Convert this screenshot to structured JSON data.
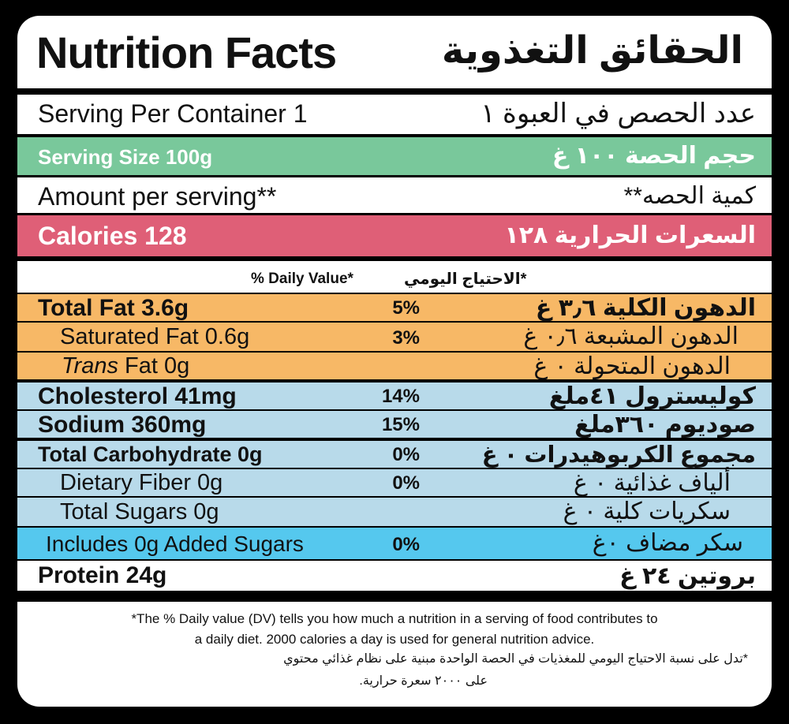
{
  "colors": {
    "serving_size_bg": "#79c89b",
    "calories_bg": "#df5f77",
    "fat_bg": "#f7b866",
    "nutrient_bg": "#b8daea",
    "added_sugars_bg": "#55c8ee"
  },
  "title": {
    "en": "Nutrition Facts",
    "ar": "الحقائق التغذوية"
  },
  "servings": {
    "en": "Serving Per Container 1",
    "ar": "عدد الحصص في العبوة ١"
  },
  "serving_size": {
    "en": "Serving Size 100g",
    "ar": "حجم الحصة ١٠٠ غ"
  },
  "amount": {
    "en": "Amount per serving**",
    "ar": "كمية الحصه**"
  },
  "calories": {
    "en": "Calories 128",
    "ar": "السعرات الحرارية ١٢٨"
  },
  "daily_value_header": {
    "en": "% Daily Value*",
    "ar": "*الاحتياج اليومي"
  },
  "nutrients": [
    {
      "en": "Total Fat 3.6g",
      "pct": "5%",
      "ar": "الدهون الكلية ٣٫٦ غ"
    },
    {
      "en": "Saturated Fat 0.6g",
      "pct": "3%",
      "ar": "الدهون المشبعة ٠٫٦ غ"
    },
    {
      "en_italic": "Trans",
      "en": " Fat 0g",
      "pct": "",
      "ar": "الدهون المتحولة ٠ غ"
    },
    {
      "en": "Cholesterol 41mg",
      "pct": "14%",
      "ar": "كوليسترول ٤١ملغ"
    },
    {
      "en": "Sodium 360mg",
      "pct": "15%",
      "ar": "صوديوم ٣٦٠ملغ"
    },
    {
      "en": "Total Carbohydrate 0g",
      "pct": "0%",
      "ar": "مجموع الكربوهيدرات ٠ غ"
    },
    {
      "en": "Dietary Fiber 0g",
      "pct": "0%",
      "ar": "ألياف غذائية ٠ غ"
    },
    {
      "en": "Total Sugars 0g",
      "pct": "",
      "ar": "سكريات كلية ٠ غ"
    },
    {
      "en": "Includes 0g Added Sugars",
      "pct": "0%",
      "ar": "سكر مضاف ٠غ"
    },
    {
      "en": "Protein 24g",
      "pct": "",
      "ar": "بروتين ٢٤ غ"
    }
  ],
  "footnote": {
    "en_line1": "*The % Daily value (DV) tells you how much a nutrition in a serving of food contributes to",
    "en_line2": "a daily diet. 2000 calories a day is used for general nutrition advice.",
    "ar_line1": "*تدل على نسبة الاحتياج اليومي للمغذيات في الحصة الواحدة مبنية على نظام غذائي محتوي",
    "ar_line2": "على ٢٠٠٠ سعرة حرارية."
  }
}
